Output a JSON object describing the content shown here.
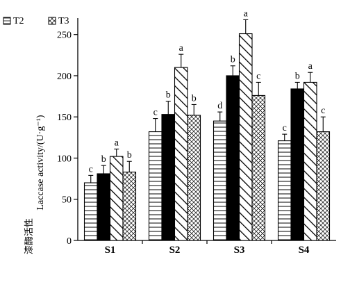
{
  "chart_data": {
    "type": "bar",
    "title": "",
    "ylabel": "Laccase activity/(U·g⁻¹)",
    "ylabel_cn": "漆酶活性",
    "categories": [
      "S1",
      "S2",
      "S3",
      "S4"
    ],
    "ylim": [
      0,
      270
    ],
    "yticks": [
      "0",
      "50",
      "100",
      "150",
      "200",
      "250"
    ],
    "legend_placement": "top-left",
    "legend": [
      "T2",
      "T3"
    ],
    "series": [
      {
        "pattern": "horizontal-lines",
        "values": [
          70,
          132,
          145,
          121
        ],
        "errors": [
          9,
          16,
          11,
          8
        ],
        "letters": [
          "c",
          "c",
          "d",
          "c"
        ]
      },
      {
        "pattern": "solid-black",
        "values": [
          81,
          153,
          200,
          184
        ],
        "errors": [
          10,
          16,
          12,
          8
        ],
        "letters": [
          "b",
          "b",
          "b",
          "b"
        ]
      },
      {
        "name": "T2",
        "pattern": "diagonal-lines",
        "values": [
          102,
          210,
          251,
          192
        ],
        "errors": [
          9,
          16,
          17,
          12
        ],
        "letters": [
          "a",
          "a",
          "a",
          "a"
        ]
      },
      {
        "name": "T3",
        "pattern": "cross-hatch",
        "values": [
          83,
          152,
          176,
          132
        ],
        "errors": [
          13,
          13,
          16,
          18
        ],
        "letters": [
          "b",
          "b",
          "c",
          "c"
        ]
      }
    ]
  }
}
